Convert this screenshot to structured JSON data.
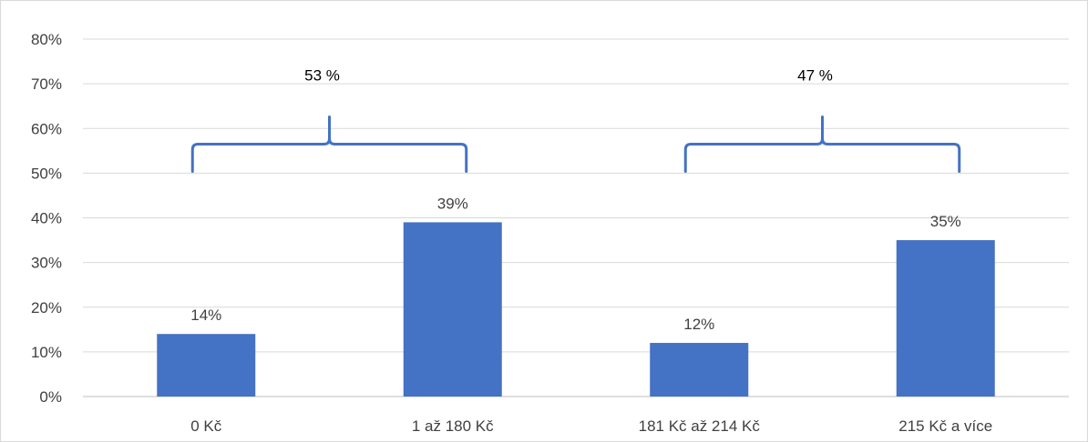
{
  "chart_data": {
    "type": "bar",
    "categories": [
      "0 Kč",
      "1 až 180 Kč",
      "181 Kč až 214 Kč",
      "215 Kč a více"
    ],
    "values": [
      14,
      39,
      12,
      35
    ],
    "data_labels": [
      "14%",
      "39%",
      "12%",
      "35%"
    ],
    "ylim": [
      0,
      80
    ],
    "yticks": [
      0,
      10,
      20,
      30,
      40,
      50,
      60,
      70,
      80
    ],
    "ytick_labels": [
      "0%",
      "10%",
      "20%",
      "30%",
      "40%",
      "50%",
      "60%",
      "70%",
      "80%"
    ],
    "grid": true,
    "bar_color": "#4472C4",
    "group_brackets": [
      {
        "label": "53 %",
        "from_category": 0,
        "to_category": 1,
        "level": 56.5
      },
      {
        "label": "47 %",
        "from_category": 2,
        "to_category": 3,
        "level": 56.5
      }
    ],
    "bracket_color": "#4472C4"
  }
}
